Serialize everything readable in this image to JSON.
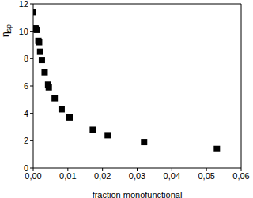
{
  "chart_data": {
    "type": "scatter",
    "x_label": "fraction monofunctional",
    "y_label": "ηsp",
    "series": [
      {
        "name": null,
        "color": "#000000",
        "marker": "square",
        "x": [
          0.0,
          0.0005,
          0.0007,
          0.001,
          0.0015,
          0.0017,
          0.002,
          0.0025,
          0.0033,
          0.0043,
          0.0045,
          0.0062,
          0.0082,
          0.0105,
          0.0172,
          0.0215,
          0.032,
          0.053
        ],
        "values": [
          11.4,
          10.2,
          10.2,
          10.1,
          9.3,
          9.2,
          8.5,
          7.9,
          7.0,
          6.1,
          5.9,
          5.1,
          4.3,
          3.7,
          2.8,
          2.4,
          1.9,
          1.4
        ]
      }
    ],
    "xlim": [
      0,
      0.06
    ],
    "xticks": [
      {
        "value": 0,
        "label": "0,00"
      },
      {
        "value": 0.01,
        "label": "0,01"
      },
      {
        "value": 0.02,
        "label": "0,02"
      },
      {
        "value": 0.03,
        "label": "0,03"
      },
      {
        "value": 0.04,
        "label": "0,04"
      },
      {
        "value": 0.05,
        "label": "0,05"
      },
      {
        "value": 0.06,
        "label": "0,06"
      }
    ],
    "ylim": [
      0,
      12
    ],
    "yticks": [
      0,
      2,
      4,
      6,
      8,
      10,
      12
    ],
    "grid": false
  }
}
